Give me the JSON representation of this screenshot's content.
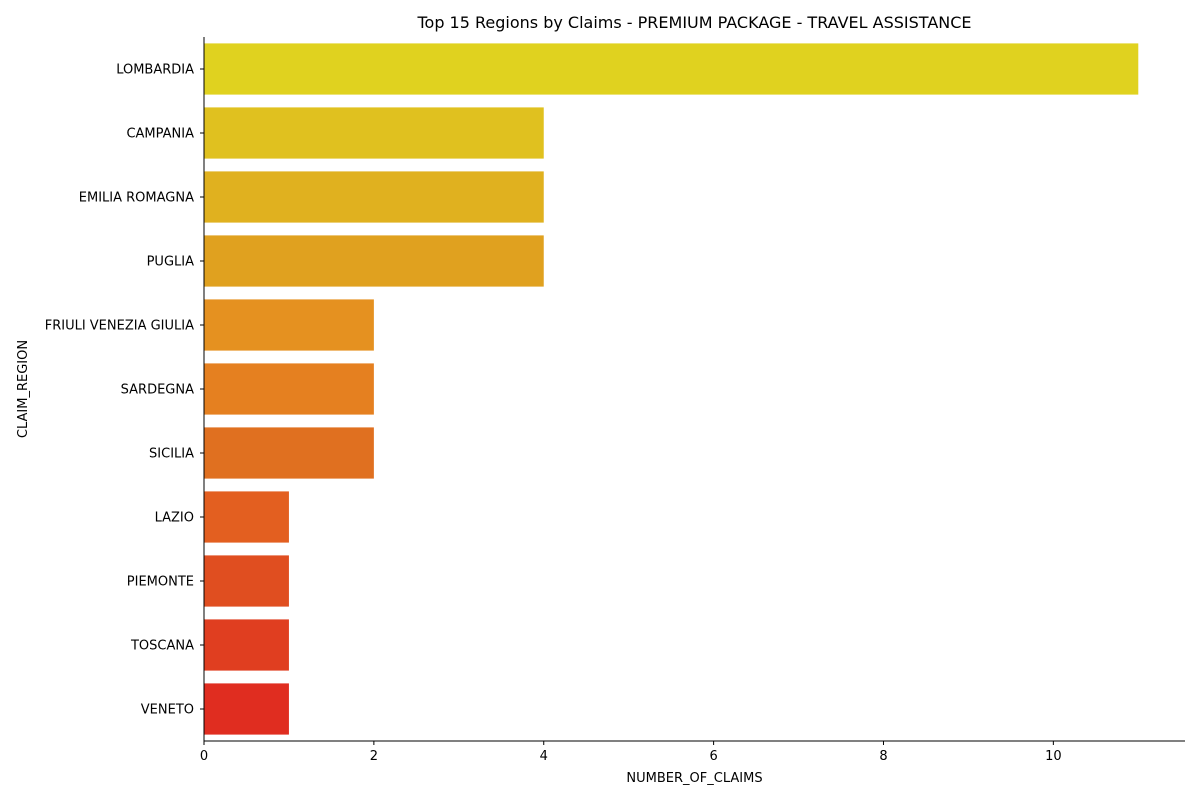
{
  "chart_data": {
    "type": "bar",
    "orientation": "horizontal",
    "title": "Top 15 Regions by Claims - PREMIUM PACKAGE - TRAVEL ASSISTANCE",
    "xlabel": "NUMBER_OF_CLAIMS",
    "ylabel": "CLAIM_REGION",
    "categories": [
      "LOMBARDIA",
      "CAMPANIA",
      "EMILIA ROMAGNA",
      "PUGLIA",
      "FRIULI VENEZIA GIULIA",
      "SARDEGNA",
      "SICILIA",
      "LAZIO",
      "PIEMONTE",
      "TOSCANA",
      "VENETO"
    ],
    "values": [
      11,
      4,
      4,
      4,
      2,
      2,
      2,
      1,
      1,
      1,
      1
    ],
    "colors": [
      "#e0d21f",
      "#e0c11f",
      "#e0b11f",
      "#e0a11f",
      "#e59120",
      "#e58020",
      "#e07020",
      "#e35f20",
      "#e04e20",
      "#e03e20",
      "#e02d20"
    ],
    "xlim": [
      0,
      11.55
    ],
    "xticks": [
      0,
      2,
      4,
      6,
      8,
      10
    ],
    "grid": false,
    "legend": "none"
  }
}
